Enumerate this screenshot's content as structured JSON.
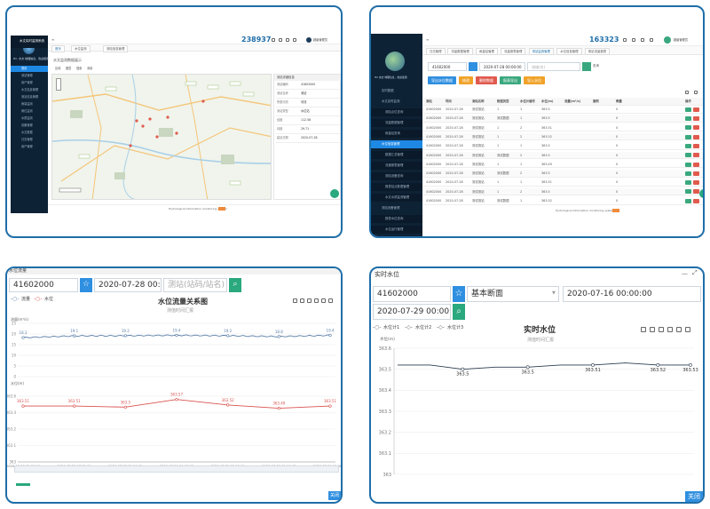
{
  "brand_color": "#1f6ea8",
  "p1": {
    "app_title": "水文实时监测系统",
    "user_caption": "Hi!, 水文 地理信息，欢迎使用",
    "counter": "238937",
    "username": "超级管理员",
    "tabs": [
      "首页",
      "水位监测",
      "测站信息管理"
    ],
    "page_heading": "水文监测数据展示",
    "sidebar": [
      "首页",
      "测站管理",
      "用户管理",
      "水文信息管理",
      "测站信息管理",
      "雨量监测",
      "雨位监测",
      "水质监测",
      "设备管理",
      "水文数据",
      "日志管理",
      "用户管理"
    ],
    "map_toolbar": [
      "区域",
      "图层",
      "搜索",
      "测量"
    ],
    "info_title": "测站详细信息",
    "info_rows": [
      {
        "k": "测站编码",
        "v": "41602000"
      },
      {
        "k": "测站名称",
        "v": "测站"
      },
      {
        "k": "所属河流",
        "v": "河流"
      },
      {
        "k": "测站类型",
        "v": "水位站"
      },
      {
        "k": "经度",
        "v": "112.58"
      },
      {
        "k": "纬度",
        "v": "29.71"
      },
      {
        "k": "建站日期",
        "v": "2020-07-28"
      }
    ],
    "footer": "Hydrological information monitoring system"
  },
  "p2": {
    "counter": "163323",
    "username": "超级管理员",
    "tabs": [
      "日志管理",
      "流量数据管理",
      "雨量站管理",
      "流量报表管理",
      "测站监测管理",
      "水位信息管理",
      "测站流量报表"
    ],
    "search_value": "41602000",
    "date_value": "2020-07-28 00:00:00",
    "placeholder": "流域(名)",
    "search_btn": "查询",
    "action_buttons": [
      {
        "label": "导出水位数据",
        "color": "#2f8fe0"
      },
      {
        "label": "修改",
        "color": "#f0a32a"
      },
      {
        "label": "删除数据",
        "color": "#e05a4e"
      },
      {
        "label": "报表导出",
        "color": "#3aa87e"
      },
      {
        "label": "导入水位",
        "color": "#f0a32a"
      }
    ],
    "sidebar": [
      {
        "label": "实时数据",
        "state": "normal"
      },
      {
        "label": "水文实时监测",
        "state": "normal"
      },
      {
        "label": "测站点位查询",
        "state": "sub"
      },
      {
        "label": "流量数据管理",
        "state": "sub"
      },
      {
        "label": "雨量站查询",
        "state": "sub"
      },
      {
        "label": "水位信息管理",
        "state": "active"
      },
      {
        "label": "数据汇总管理",
        "state": "sub"
      },
      {
        "label": "流速报表管理",
        "state": "sub"
      },
      {
        "label": "测站设备查询",
        "state": "sub"
      },
      {
        "label": "报表站点数据管理",
        "state": "sub"
      },
      {
        "label": "水文水质监测管理",
        "state": "sub"
      },
      {
        "label": "测站设备管理",
        "state": "normal"
      },
      {
        "label": "报表水位查询",
        "state": "sub"
      },
      {
        "label": "水位运行管理",
        "state": "sub"
      }
    ],
    "columns": [
      "测站",
      "时间",
      "测站名称",
      "数据类型",
      "水位计编号",
      "水位(m)",
      "流量(m³/s)",
      "面积",
      "雨量",
      "操作"
    ],
    "rows": [
      [
        "41602000",
        "2020-07-28",
        "测试测站",
        "1",
        "1",
        "363.5",
        "",
        "",
        "0"
      ],
      [
        "41602000",
        "2020-07-28",
        "测试测站",
        "测试数据",
        "1",
        "363.5",
        "",
        "",
        "0"
      ],
      [
        "41602000",
        "2020-07-28",
        "测试测站",
        "1",
        "2",
        "363.51",
        "",
        "",
        "0"
      ],
      [
        "41602000",
        "2020-07-28",
        "测试测站",
        "1",
        "2",
        "363.52",
        "",
        "",
        "0"
      ],
      [
        "41602000",
        "2020-07-28",
        "测试测站",
        "1",
        "1",
        "363.5",
        "",
        "",
        "0"
      ],
      [
        "41602000",
        "2020-07-28",
        "测试测站",
        "测试数据",
        "2",
        "363.5",
        "",
        "",
        "0"
      ],
      [
        "41602000",
        "2020-07-28",
        "测试测站",
        "1",
        "1",
        "363.49",
        "",
        "",
        "0"
      ],
      [
        "41602000",
        "2020-07-28",
        "测试测站",
        "测试数据",
        "2",
        "363.5",
        "",
        "",
        "0"
      ],
      [
        "41602000",
        "2020-07-28",
        "测试测站",
        "1",
        "1",
        "363.51",
        "",
        "",
        "0"
      ],
      [
        "41602000",
        "2020-07-28",
        "测试测站",
        "1",
        "2",
        "363.5",
        "",
        "",
        "0"
      ],
      [
        "41602000",
        "2020-07-28",
        "测试测站",
        "测试数据",
        "1",
        "363.52",
        "",
        "",
        "0"
      ]
    ],
    "op_edit": "修改",
    "op_del": "删除",
    "footer": "Hydrological Information monitoring system"
  },
  "p3": {
    "window_title": "水位流量",
    "station": "41602000",
    "datetime": "2020-07-28 00:00:00",
    "placeholder": "测站(站码/站名)",
    "legend": [
      "流量",
      "水位"
    ],
    "title": "水位流量关系图",
    "subtitle": "测值时间汇报",
    "y1_label": "流量(m³/s)",
    "y2_label": "水位(m)",
    "close": "关闭"
  },
  "p4": {
    "window_title": "实时水位",
    "station": "41602000",
    "section_select": "基本断面",
    "date_from": "2020-07-16 00:00:00",
    "date_to": "2020-07-29 00:00:00",
    "legend": [
      "水位计1",
      "水位计2",
      "水位计3"
    ],
    "title": "实时水位",
    "subtitle": "测值时间汇报",
    "ylabel": "水位(m)",
    "close": "关闭"
  },
  "chart_data": [
    {
      "type": "line",
      "title": "水位流量关系图",
      "subtitle": "测值时间汇报",
      "x": [
        "2020-07-28 05:00:00",
        "2020-07-28 07:00:00",
        "2020-07-28 09:00:00",
        "2020-07-29 04:00:00",
        "2020-07-29 05:00:00",
        "2020-07-29 09:00:00",
        "2020-07-29 15:00:00"
      ],
      "series": [
        {
          "name": "流量",
          "axis": "top",
          "color": "#5b7fa8",
          "values": [
            18.3,
            19.1,
            19.2,
            19.4,
            19.2,
            18.8,
            19.4
          ],
          "labels": [
            "18.3",
            "19.1",
            "19.2",
            "19.4",
            "19.2",
            "18.8",
            "19.4"
          ]
        },
        {
          "name": "水位",
          "axis": "bottom",
          "color": "#d9534f",
          "values": [
            363.51,
            363.51,
            363.5,
            363.57,
            363.52,
            363.49,
            363.51
          ],
          "labels": [
            "363.51",
            "363.51",
            "363.5",
            "363.57",
            "363.52",
            "363.49",
            "363.51"
          ]
        }
      ],
      "ylabel_top": "流量(m³/s)",
      "ylim_top": [
        0,
        25
      ],
      "yticks_top": [
        "25",
        "20",
        "15",
        "10",
        "5",
        "0"
      ],
      "ylabel_bottom": "水位(m)",
      "ylim_bottom": [
        363,
        363.6
      ],
      "yticks_bottom": [
        "363.6",
        "363.4",
        "363.2",
        "363.1",
        "363"
      ],
      "grid": true,
      "legend": "top-left"
    },
    {
      "type": "line",
      "title": "实时水位",
      "subtitle": "测值时间汇报",
      "ylabel": "水位(m)",
      "ylim": [
        363,
        363.6
      ],
      "yticks": [
        "363.6",
        "363.5",
        "363.4",
        "363.3",
        "363.2",
        "363.1",
        "363"
      ],
      "series": [
        {
          "name": "水位计1",
          "values": [
            363.52,
            363.52,
            363.5,
            363.51,
            363.51,
            363.52,
            363.52,
            363.53,
            363.52,
            363.52
          ]
        },
        {
          "name": "水位计2",
          "values": []
        },
        {
          "name": "水位计3",
          "values": []
        }
      ],
      "data_labels": [
        "363.5",
        "363.5",
        "363.51",
        "363.52",
        "363.53"
      ],
      "grid": true,
      "legend": "top-left"
    }
  ]
}
